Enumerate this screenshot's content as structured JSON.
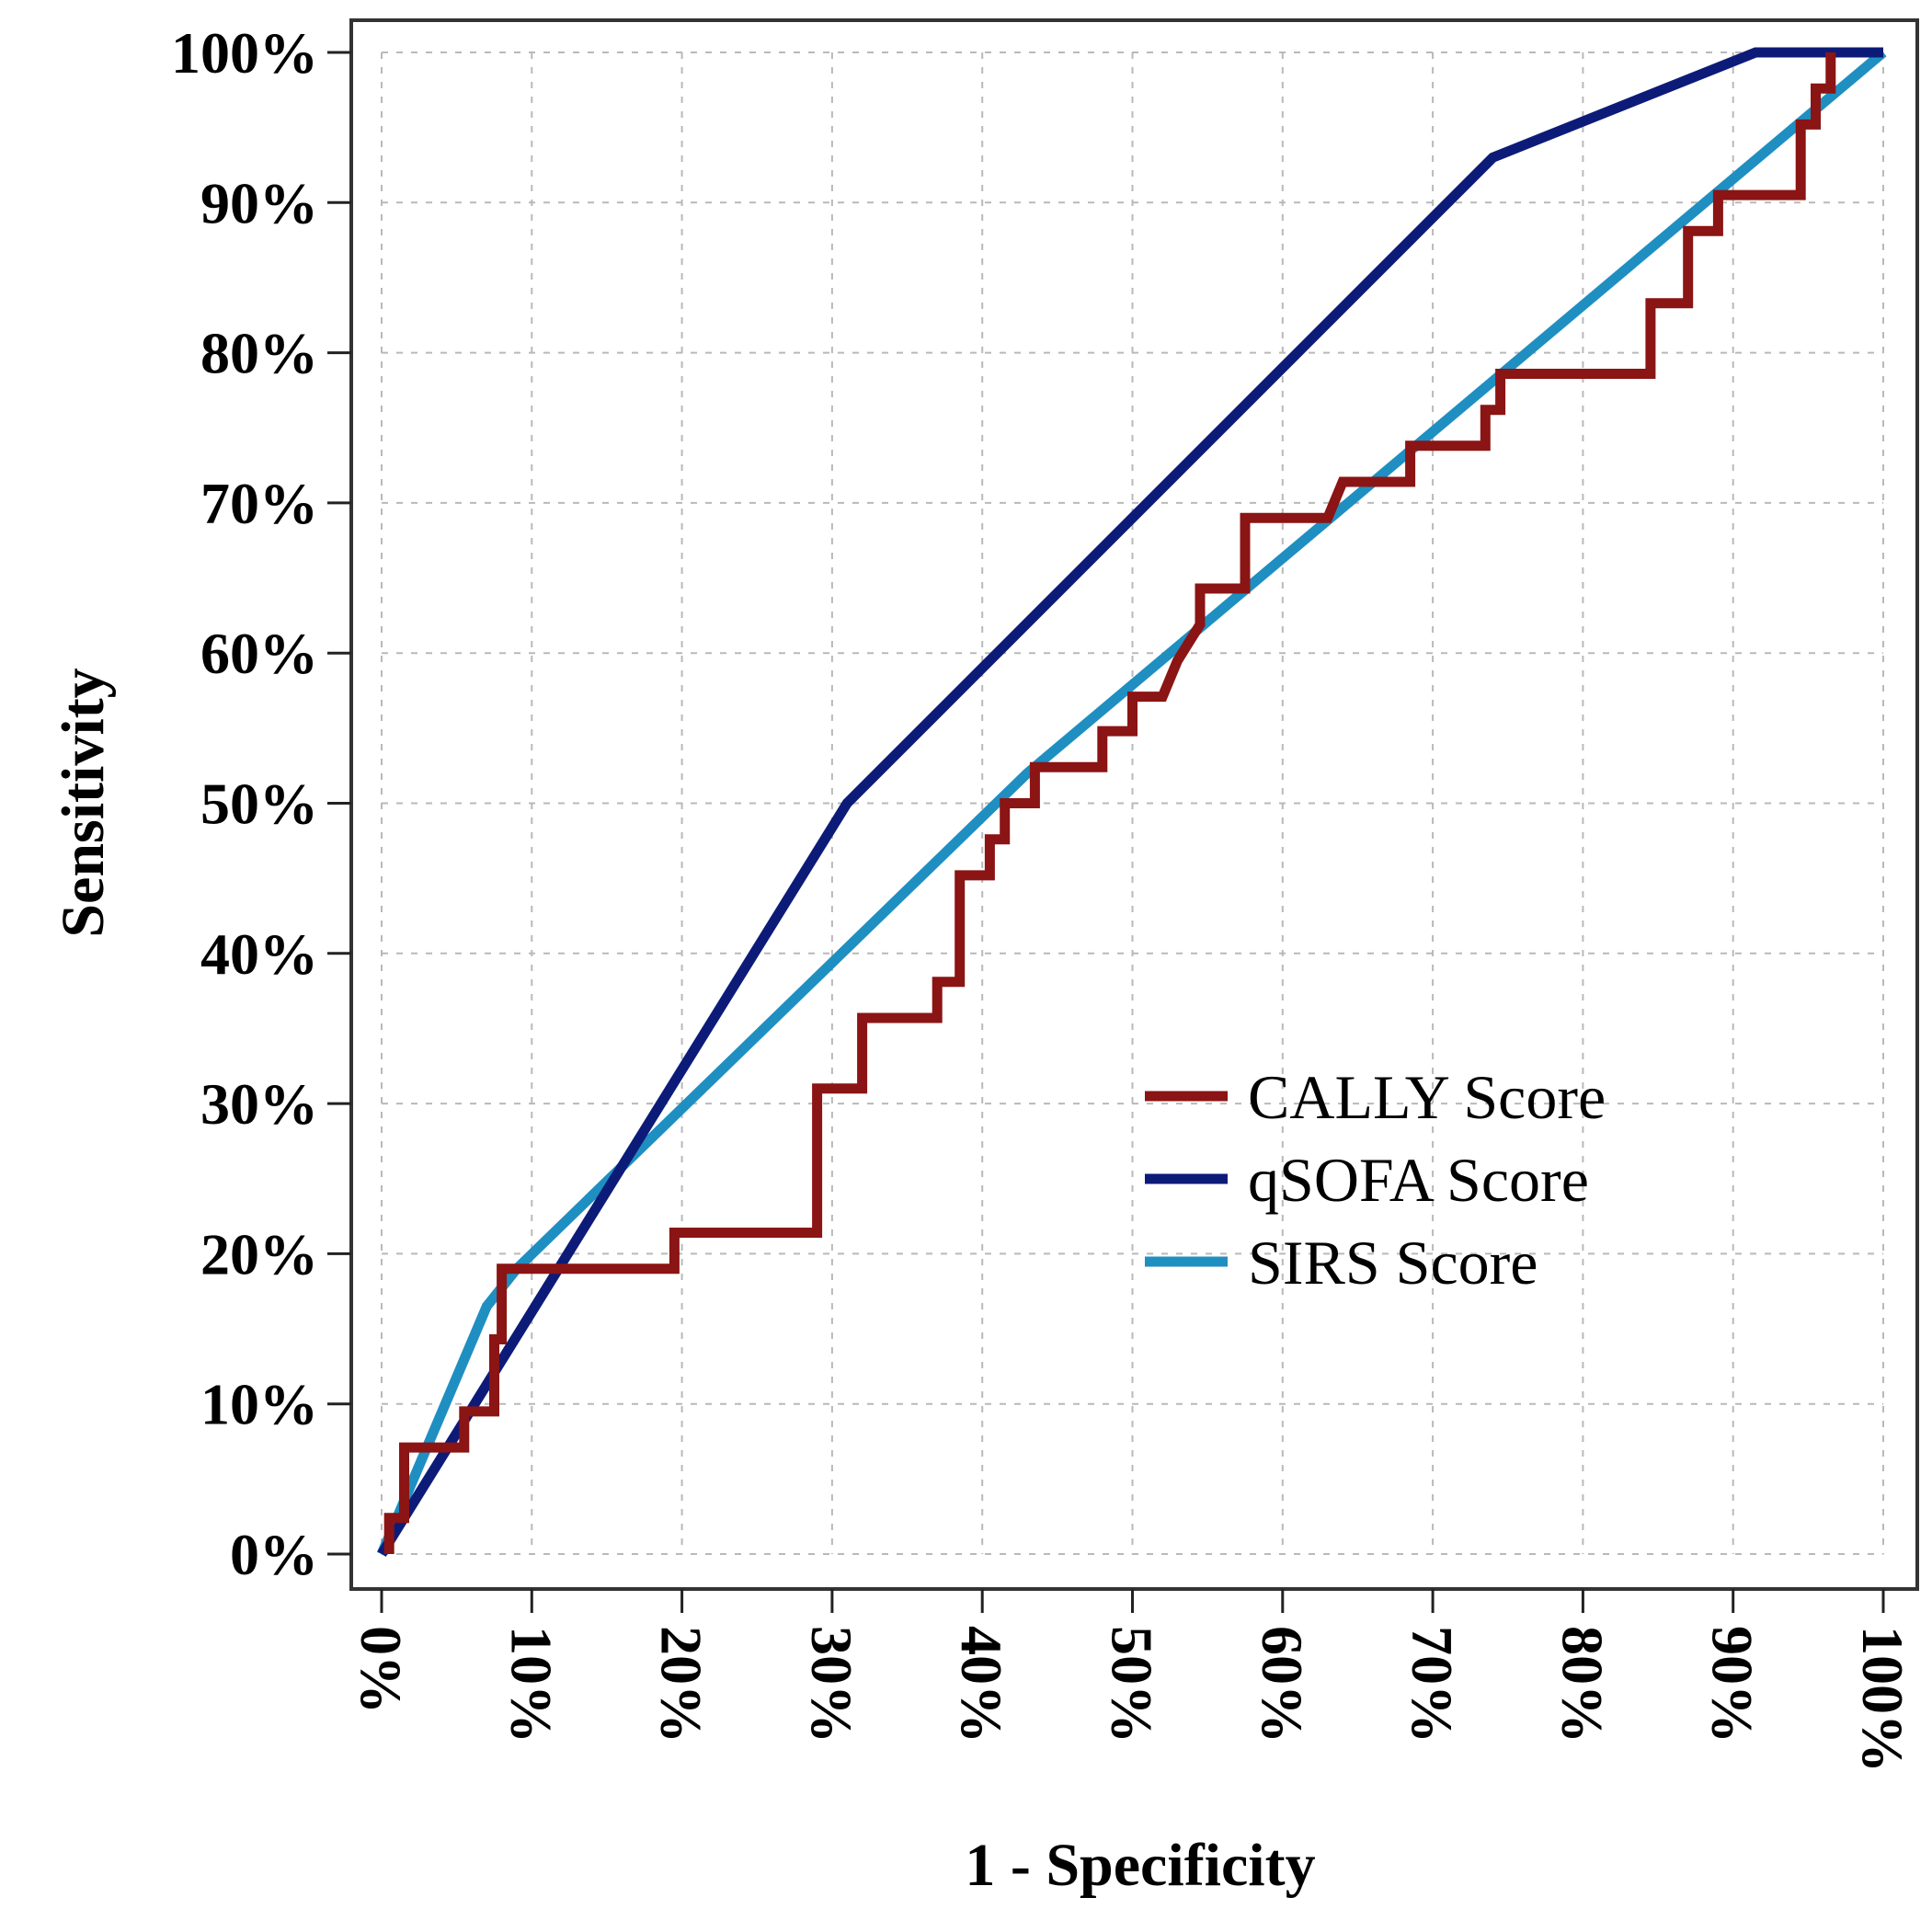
{
  "chart_data": {
    "type": "line",
    "xlabel": "1 - Specificity",
    "ylabel": "Sensitivity",
    "xlim": [
      0,
      1
    ],
    "ylim": [
      0,
      1
    ],
    "x_ticks": [
      "0%",
      "10%",
      "20%",
      "30%",
      "40%",
      "50%",
      "60%",
      "70%",
      "80%",
      "90%",
      "100%"
    ],
    "y_ticks": [
      "0%",
      "10%",
      "20%",
      "30%",
      "40%",
      "50%",
      "60%",
      "70%",
      "80%",
      "90%",
      "100%"
    ],
    "grid": true,
    "legend_position": "lower-right",
    "series": [
      {
        "name": "CALLY Score",
        "color": "#8b1414",
        "x": [
          0.005,
          0.005,
          0.015,
          0.015,
          0.02,
          0.02,
          0.055,
          0.055,
          0.065,
          0.065,
          0.075,
          0.075,
          0.08,
          0.08,
          0.195,
          0.195,
          0.29,
          0.29,
          0.32,
          0.32,
          0.37,
          0.37,
          0.385,
          0.385,
          0.405,
          0.405,
          0.415,
          0.415,
          0.435,
          0.435,
          0.48,
          0.48,
          0.5,
          0.5,
          0.52,
          0.53,
          0.545,
          0.545,
          0.575,
          0.575,
          0.63,
          0.64,
          0.685,
          0.685,
          0.735,
          0.735,
          0.745,
          0.745,
          0.76,
          0.76,
          0.845,
          0.845,
          0.87,
          0.87,
          0.89,
          0.89,
          0.945,
          0.945,
          0.955,
          0.955,
          0.965,
          0.965
        ],
        "y": [
          0,
          0.024,
          0.024,
          0.071,
          0.071,
          0.071,
          0.071,
          0.095,
          0.095,
          0.095,
          0.095,
          0.143,
          0.143,
          0.19,
          0.19,
          0.214,
          0.214,
          0.31,
          0.31,
          0.357,
          0.357,
          0.381,
          0.381,
          0.452,
          0.452,
          0.476,
          0.476,
          0.5,
          0.5,
          0.524,
          0.524,
          0.548,
          0.548,
          0.571,
          0.571,
          0.595,
          0.619,
          0.643,
          0.643,
          0.69,
          0.69,
          0.714,
          0.714,
          0.738,
          0.738,
          0.762,
          0.762,
          0.786,
          0.786,
          0.786,
          0.786,
          0.833,
          0.833,
          0.881,
          0.881,
          0.905,
          0.905,
          0.952,
          0.952,
          0.976,
          0.976,
          1.0
        ]
      },
      {
        "name": "qSOFA Score",
        "color": "#0d1b78",
        "x": [
          0,
          0.31,
          0.74,
          0.915,
          1.0
        ],
        "y": [
          0,
          0.5,
          0.93,
          1.0,
          1.0
        ]
      },
      {
        "name": "SIRS Score",
        "color": "#1f8fc2",
        "x": [
          0,
          0.07,
          0.09,
          0.43,
          1.0
        ],
        "y": [
          0,
          0.165,
          0.19,
          0.52,
          1.0
        ]
      }
    ]
  }
}
